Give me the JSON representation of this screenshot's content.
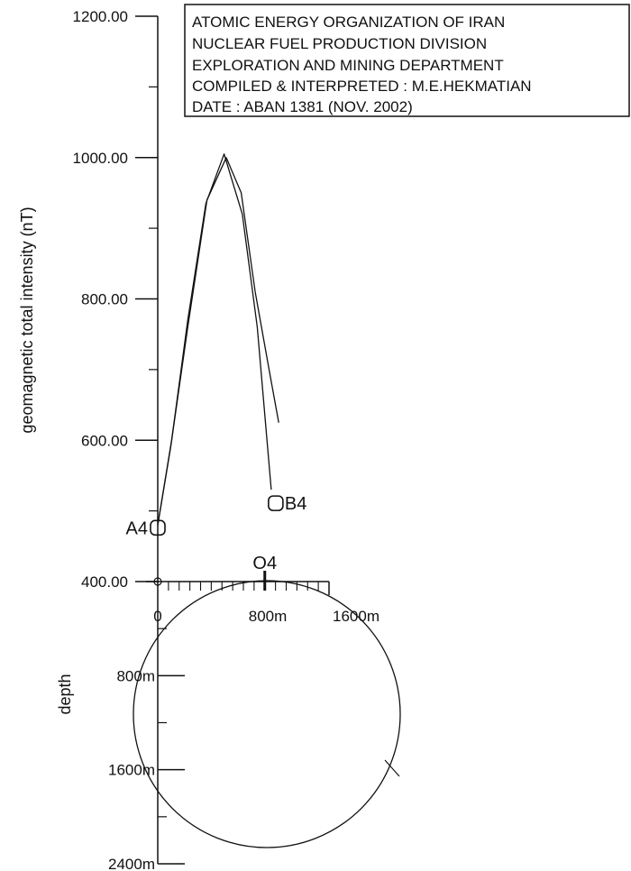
{
  "chart_data": [
    {
      "type": "line",
      "title_block": [
        "ATOMIC ENERGY ORGANIZATION OF IRAN",
        "NUCLEAR FUEL PRODUCTION DIVISION",
        "EXPLORATION AND MINING DEPARTMENT",
        "COMPILED & INTERPRETED : M.E.HEKMATIAN",
        "DATE : ABAN 1381 (NOV. 2002)"
      ],
      "ylabel": "geomagnetic total intensity (nT)",
      "ylim": [
        400,
        1200
      ],
      "yticks": [
        "400.00",
        "600.00",
        "800.00",
        "1000.00",
        "1200.00"
      ],
      "xlim": [
        0,
        1600
      ],
      "series": [
        {
          "x": [
            0,
            130,
            280,
            450,
            620,
            790,
            930,
            1060
          ],
          "values": [
            480,
            600,
            770,
            935,
            1005,
            920,
            760,
            530
          ]
        },
        {
          "x": [
            0,
            120,
            280,
            460,
            640,
            780,
            910,
            1040,
            1130
          ],
          "values": [
            480,
            590,
            760,
            940,
            1000,
            950,
            810,
            700,
            625
          ]
        }
      ],
      "markers": [
        {
          "label": "A4",
          "x": 0,
          "y": 480
        },
        {
          "label": "B4",
          "x": 1060,
          "y": 530
        }
      ]
    },
    {
      "type": "diagram",
      "xlabel": "",
      "ylabel": "depth",
      "xticks": [
        "0",
        "800m",
        "1600m"
      ],
      "yticks": [
        "800m",
        "1600m",
        "2400m"
      ],
      "origin_label": "O4",
      "xlim": [
        0,
        1600
      ],
      "ylim": [
        0,
        2400
      ],
      "body": {
        "shape": "circle",
        "center_x": 950,
        "center_depth": 1200,
        "radius": 1170
      }
    }
  ]
}
